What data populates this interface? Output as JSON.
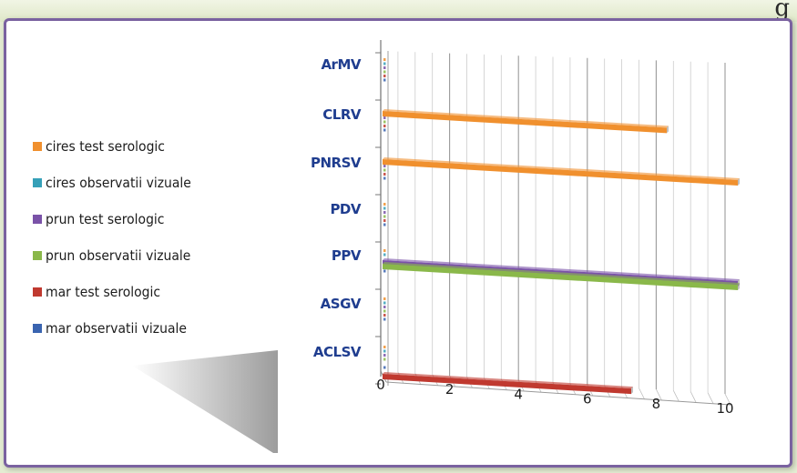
{
  "corner_glyph": "g",
  "colors": {
    "frame": "#7a62a0",
    "background": "#e4ecd2",
    "grid": "#c8c8c8",
    "category_text": "#1f3d8f"
  },
  "chart_data": {
    "type": "bar",
    "orientation": "horizontal",
    "style": "3d",
    "categories": [
      "ArMV",
      "CLRV",
      "PNRSV",
      "PDV",
      "PPV",
      "ASGV",
      "ACLSV"
    ],
    "xlim": [
      0,
      10
    ],
    "x_ticks": [
      "0",
      "2",
      "4",
      "6",
      "8",
      "10"
    ],
    "grid": true,
    "legend_position": "left",
    "series": [
      {
        "name": "cires test serologic",
        "color": "#f0902e",
        "values": [
          0,
          8,
          10,
          0,
          0,
          0,
          0
        ]
      },
      {
        "name": "cires observatii vizuale",
        "color": "#36a0b8",
        "values": [
          0,
          0,
          0,
          0,
          0,
          0,
          0
        ]
      },
      {
        "name": "prun test serologic",
        "color": "#7a52a8",
        "values": [
          0,
          0,
          0,
          0,
          10,
          0,
          0
        ]
      },
      {
        "name": "prun observatii vizuale",
        "color": "#8ab84a",
        "values": [
          0,
          0,
          0,
          0,
          10,
          0,
          0
        ]
      },
      {
        "name": "mar test serologic",
        "color": "#c0392f",
        "values": [
          0,
          0,
          0,
          0,
          0,
          0,
          7
        ]
      },
      {
        "name": "mar observatii vizuale",
        "color": "#3a64b0",
        "values": [
          0,
          0,
          0,
          0,
          0,
          0,
          0
        ]
      }
    ]
  }
}
